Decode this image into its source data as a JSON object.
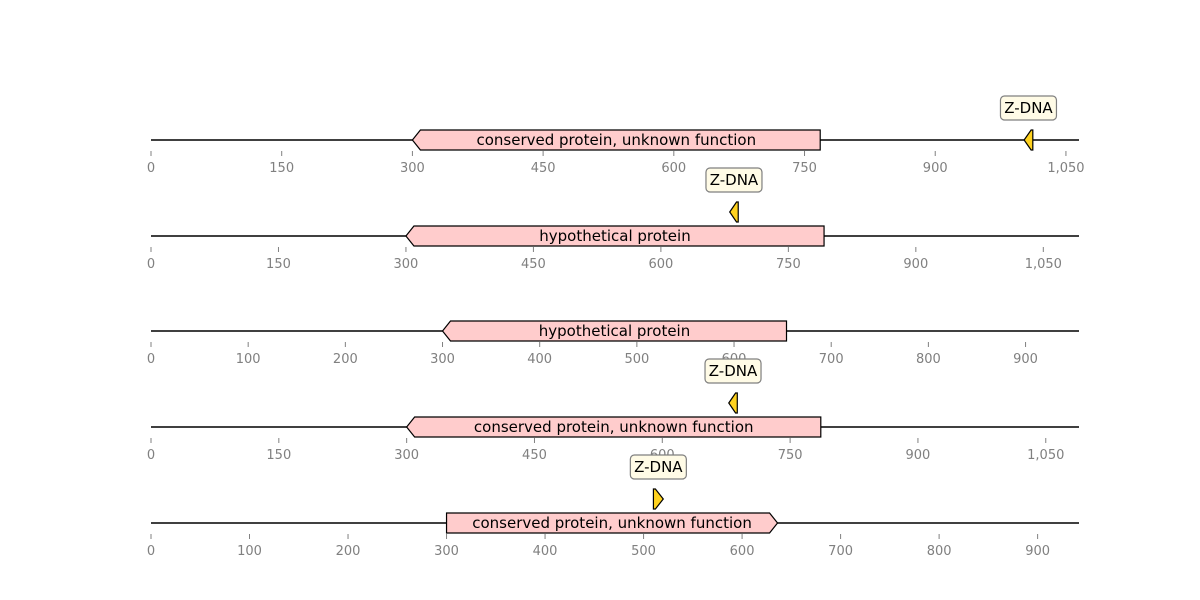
{
  "colors": {
    "feature_fill": "#ffcccc",
    "annotation_fill": "#ffd21f",
    "callout_fill": "#fffbe6",
    "axis_text": "#808080",
    "line": "#000000"
  },
  "tracks": [
    {
      "length": 1065,
      "ticks": [
        0,
        150,
        300,
        450,
        600,
        750,
        900,
        1050
      ],
      "tick_labels": [
        "0",
        "150",
        "300",
        "450",
        "600",
        "750",
        "900",
        "1,050"
      ],
      "feature": {
        "label": "conserved protein, unknown function",
        "start": 300,
        "end": 768,
        "strand": -1
      },
      "annotation": {
        "label": "Z-DNA",
        "start": 1002,
        "end": 1012,
        "strand": -1
      }
    },
    {
      "length": 1092,
      "ticks": [
        0,
        150,
        300,
        450,
        600,
        750,
        900,
        1050
      ],
      "tick_labels": [
        "0",
        "150",
        "300",
        "450",
        "600",
        "750",
        "900",
        "1,050"
      ],
      "feature": {
        "label": "hypothetical protein",
        "start": 300,
        "end": 792,
        "strand": -1
      },
      "annotation": {
        "label": "Z-DNA",
        "start": 681,
        "end": 691,
        "strand": -1
      }
    },
    {
      "length": 955,
      "ticks": [
        0,
        100,
        200,
        300,
        400,
        500,
        600,
        700,
        800,
        900
      ],
      "tick_labels": [
        "0",
        "100",
        "200",
        "300",
        "400",
        "500",
        "600",
        "700",
        "800",
        "900"
      ],
      "feature": {
        "label": "hypothetical protein",
        "start": 300,
        "end": 654,
        "strand": -1
      },
      "annotation": null
    },
    {
      "length": 1089,
      "ticks": [
        0,
        150,
        300,
        450,
        600,
        750,
        900,
        1050
      ],
      "tick_labels": [
        "0",
        "150",
        "300",
        "450",
        "600",
        "750",
        "900",
        "1,050"
      ],
      "feature": {
        "label": "conserved protein, unknown function",
        "start": 300,
        "end": 786,
        "strand": -1
      },
      "annotation": {
        "label": "Z-DNA",
        "start": 678,
        "end": 688,
        "strand": -1
      }
    },
    {
      "length": 942,
      "ticks": [
        0,
        100,
        200,
        300,
        400,
        500,
        600,
        700,
        800,
        900
      ],
      "tick_labels": [
        "0",
        "100",
        "200",
        "300",
        "400",
        "500",
        "600",
        "700",
        "800",
        "900"
      ],
      "feature": {
        "label": "conserved protein, unknown function",
        "start": 300,
        "end": 636,
        "strand": 1
      },
      "annotation": {
        "label": "Z-DNA",
        "start": 510,
        "end": 520,
        "strand": 1
      }
    }
  ]
}
